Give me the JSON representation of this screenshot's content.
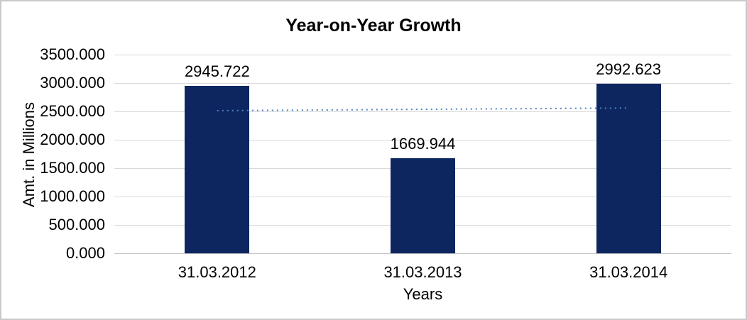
{
  "window": {
    "background_color": "#ffffff",
    "border_color": "#c9c9c9"
  },
  "chart_data": {
    "type": "bar",
    "title": "Year-on-Year Growth",
    "xlabel": "Years",
    "ylabel": "Amt. in Millions",
    "categories": [
      "31.03.2012",
      "31.03.2013",
      "31.03.2014"
    ],
    "values": [
      2945.722,
      1669.944,
      2992.623
    ],
    "value_labels": [
      "2945.722",
      "1669.944",
      "2992.623"
    ],
    "ylim": [
      0,
      3500
    ],
    "ytick_step": 500,
    "ytick_labels": [
      "3500.000",
      "3000.000",
      "2500.000",
      "2000.000",
      "1500.000",
      "1000.000",
      "500.000",
      "0.000"
    ],
    "grid": true,
    "legend": "none",
    "bar_color": "#0e2660",
    "gridline_color": "#d9d9d9",
    "axis_line_color": "#bfbfbf",
    "text_color": "#000000",
    "trendline": {
      "type": "linear",
      "style": "dotted",
      "color": "#4f81bd",
      "start_value": 2513,
      "end_value": 2560
    }
  }
}
